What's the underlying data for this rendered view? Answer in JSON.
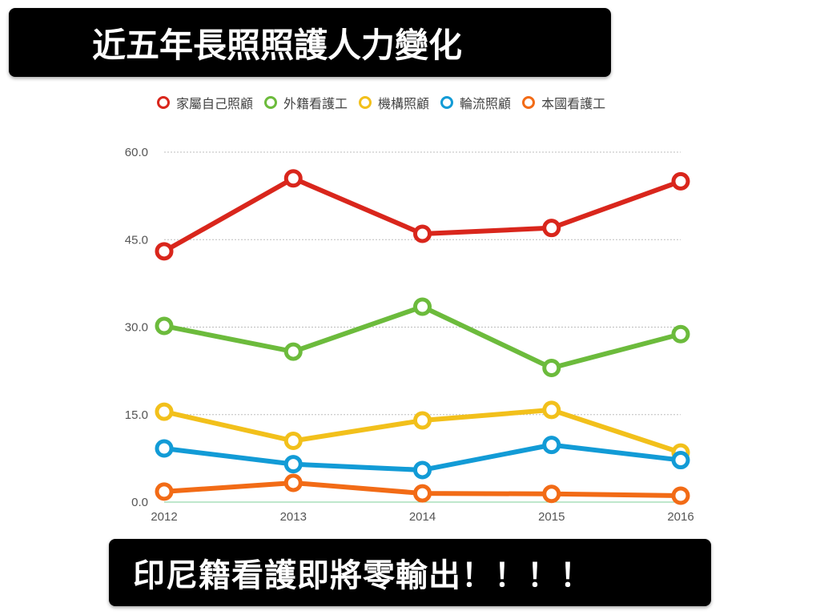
{
  "title": "近五年長照照護人力變化",
  "footer": "印尼籍看護即將零輸出！！！！",
  "chart_data": {
    "type": "line",
    "title": "",
    "xlabel": "",
    "ylabel": "",
    "x": [
      "2012",
      "2013",
      "2014",
      "2015",
      "2016"
    ],
    "ylim": [
      0,
      60
    ],
    "yticks": [
      "0.0",
      "15.0",
      "30.0",
      "45.0",
      "60.0"
    ],
    "grid": true,
    "legend_position": "top",
    "series": [
      {
        "name": "家屬自己照顧",
        "color": "#d9261c",
        "values": [
          43.0,
          55.5,
          46.0,
          47.0,
          55.0
        ]
      },
      {
        "name": "外籍看護工",
        "color": "#6cbb3c",
        "values": [
          30.2,
          25.8,
          33.5,
          23.0,
          28.8
        ]
      },
      {
        "name": "機構照顧",
        "color": "#f2c01b",
        "values": [
          15.5,
          10.5,
          14.0,
          15.8,
          8.5
        ]
      },
      {
        "name": "輪流照顧",
        "color": "#129bd6",
        "values": [
          9.2,
          6.5,
          5.5,
          9.8,
          7.2
        ]
      },
      {
        "name": "本國看護工",
        "color": "#f26b16",
        "values": [
          1.8,
          3.3,
          1.5,
          1.4,
          1.1
        ]
      }
    ]
  }
}
